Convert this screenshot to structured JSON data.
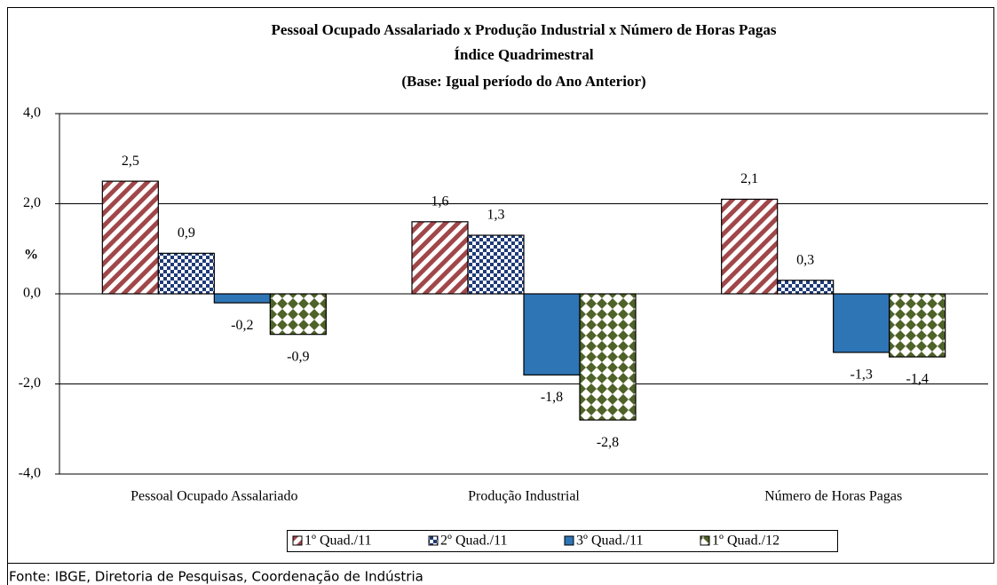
{
  "chart_data": {
    "type": "bar",
    "title": "Pessoal Ocupado Assalariado x Produção Industrial x Número de Horas Pagas",
    "subtitle": [
      "Índice Quadrimestral",
      "(Base: Igual período do Ano Anterior)"
    ],
    "y_label": "%",
    "categories": [
      "Pessoal Ocupado Assalariado",
      "Produção Industrial",
      "Número de Horas Pagas"
    ],
    "series": [
      {
        "name": "1º Quad./11",
        "color": "#a0474a",
        "pattern": "diagonal",
        "values": [
          2.5,
          1.6,
          2.1
        ],
        "value_labels": [
          "2,5",
          "1,6",
          "2,1"
        ]
      },
      {
        "name": "2º Quad./11",
        "color": "#1f3a78",
        "pattern": "checker",
        "values": [
          0.9,
          1.3,
          0.3
        ],
        "value_labels": [
          "0,9",
          "1,3",
          "0,3"
        ]
      },
      {
        "name": "3º Quad./11",
        "color": "#2e75b6",
        "pattern": "solid",
        "values": [
          -0.2,
          -1.8,
          -1.3
        ],
        "value_labels": [
          "-0,2",
          "-1,8",
          "-1,3"
        ]
      },
      {
        "name": "1º Quad./12",
        "color": "#4f6228",
        "pattern": "diamond",
        "values": [
          -0.9,
          -2.8,
          -1.4
        ],
        "value_labels": [
          "-0,9",
          "-2,8",
          "-1,4"
        ]
      }
    ],
    "ylim": [
      -4,
      4
    ],
    "yticks": [
      {
        "value": -4,
        "label": "-4,0"
      },
      {
        "value": -2,
        "label": "-2,0"
      },
      {
        "value": 0,
        "label": "0,0"
      },
      {
        "value": 2,
        "label": "2,0"
      },
      {
        "value": 4,
        "label": "4,0"
      }
    ],
    "grid": true,
    "legend": "bottom",
    "source": "Fonte: IBGE, Diretoria de Pesquisas, Coordenação de Indústria"
  }
}
